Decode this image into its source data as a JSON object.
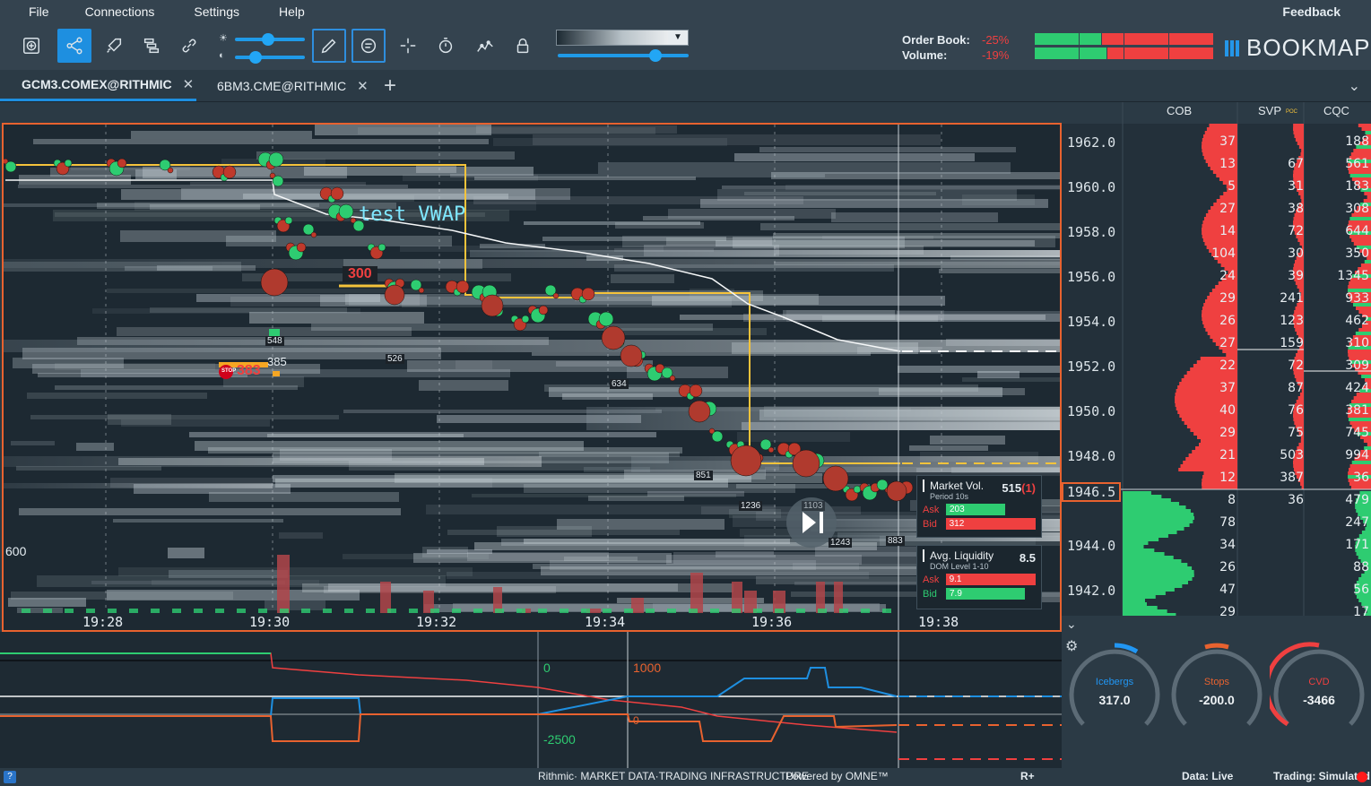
{
  "menu": {
    "file": "File",
    "connections": "Connections",
    "settings": "Settings",
    "help": "Help",
    "feedback": "Feedback"
  },
  "toolbar": {
    "order_book_label": "Order Book:",
    "volume_label": "Volume:",
    "order_book_value": "-25%",
    "volume_value": "-19%",
    "brand": "BOOKMAP"
  },
  "tabs": [
    {
      "label": "GCM3.COMEX@RITHMIC",
      "close": "✕"
    },
    {
      "label": "6BM3.CME@RITHMIC",
      "close": "✕"
    }
  ],
  "tab_add": "+",
  "chart": {
    "annotation": "test VWAP",
    "order_300": "300",
    "stop_label": "STOP",
    "stop_383": "383",
    "qty_385": "385",
    "left_label": "600",
    "time_labels": [
      "19:28",
      "19:30",
      "19:32",
      "19:34",
      "19:36",
      "19:38"
    ],
    "trade_tags": [
      "548",
      "526",
      "634",
      "851",
      "1236",
      "1103",
      "1243",
      "883"
    ]
  },
  "columns": {
    "cob": "COB",
    "svp": "SVP",
    "svp_poc": "POC",
    "cqc": "CQC"
  },
  "prices": [
    "1962.0",
    "1960.0",
    "1958.0",
    "1956.0",
    "1954.0",
    "1952.0",
    "1950.0",
    "1948.0",
    "1946.5",
    "1944.0",
    "1942.0"
  ],
  "cob_values": [
    "37",
    "13",
    "5",
    "27",
    "14",
    "104",
    "24",
    "29",
    "26",
    "27",
    "22",
    "37",
    "40",
    "29",
    "21",
    "12",
    "8",
    "78",
    "34",
    "26",
    "47",
    "29"
  ],
  "svp_values": [
    "67",
    "31",
    "38",
    "72",
    "30",
    "39",
    "241",
    "123",
    "159",
    "72",
    "87",
    "76",
    "75",
    "503",
    "387",
    "36"
  ],
  "cqc_values": [
    "188",
    "561",
    "183",
    "308",
    "644",
    "350",
    "1345",
    "933",
    "462",
    "310",
    "309",
    "424",
    "381",
    "745",
    "994",
    "36",
    "479",
    "247",
    "171",
    "88",
    "56",
    "17"
  ],
  "market_vol": {
    "title": "Market Vol.",
    "sub": "Period 10s",
    "value": "515",
    "value_extra": "(1)",
    "ask_label": "Ask",
    "ask": "203",
    "bid_label": "Bid",
    "bid": "312"
  },
  "avg_liq": {
    "title": "Avg. Liquidity",
    "sub": "DOM Level 1-10",
    "value": "8.5",
    "ask_label": "Ask",
    "ask": "9.1",
    "bid_label": "Bid",
    "bid": "7.9"
  },
  "lower": {
    "label_0": "0",
    "label_1000": "1000",
    "label_m2500": "-2500",
    "label_zero_small": "0"
  },
  "gauges": [
    {
      "name": "Icebergs",
      "value": "317.0",
      "color": "#2196f3"
    },
    {
      "name": "Stops",
      "value": "-200.0",
      "color": "#e8622f"
    },
    {
      "name": "CVD",
      "value": "-3466",
      "color": "#ef4040"
    }
  ],
  "status": {
    "help": "?",
    "rithmic": "Rithmic· MARKET DATA·TRADING INFRASTRUCTURE",
    "omne": "Powered by OMNE™",
    "rplus": "R+",
    "data": "Data: Live",
    "trading": "Trading: Simulated"
  },
  "colors": {
    "accent": "#1e8fe0",
    "ask": "#ef4040",
    "bid": "#2ecc71",
    "frame": "#e8622f",
    "vwap": "#f5c33b"
  }
}
